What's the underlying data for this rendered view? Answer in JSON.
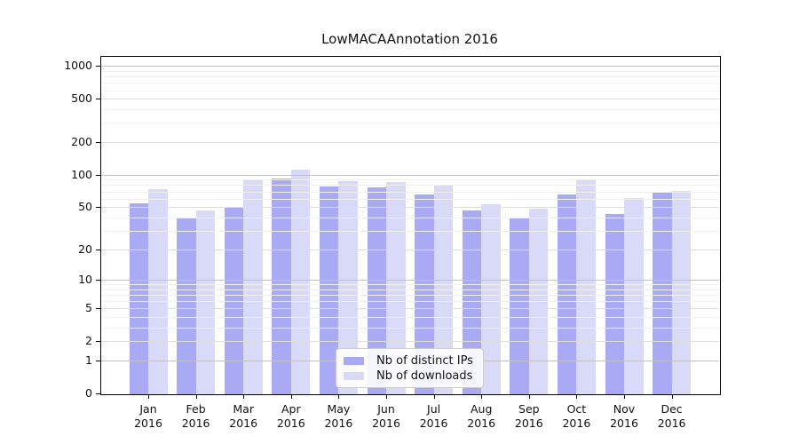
{
  "chart_data": {
    "type": "bar",
    "title": "LowMACAAnnotation 2016",
    "categories": [
      "Jan",
      "Feb",
      "Mar",
      "Apr",
      "May",
      "Jun",
      "Jul",
      "Aug",
      "Sep",
      "Oct",
      "Nov",
      "Dec"
    ],
    "category_year": "2016",
    "series": [
      {
        "name": "Nb of distinct IPs",
        "color": "#a9a9f4",
        "values": [
          54,
          40,
          50,
          93,
          78,
          76,
          65,
          46,
          40,
          66,
          43,
          69
        ]
      },
      {
        "name": "Nb of downloads",
        "color": "#d9d9f8",
        "values": [
          73,
          46,
          91,
          112,
          87,
          86,
          80,
          53,
          48,
          89,
          61,
          71
        ]
      }
    ],
    "y_ticks": [
      0,
      1,
      2,
      5,
      10,
      20,
      50,
      100,
      200,
      500,
      1000
    ],
    "y_minor_ticks": [
      3,
      4,
      6,
      7,
      8,
      9,
      30,
      40,
      60,
      70,
      80,
      90,
      300,
      400,
      600,
      700,
      800,
      900
    ],
    "y_scale": "log(1+x)",
    "ylim": [
      0,
      1100
    ],
    "grid": true,
    "legend_position": "bottom-center",
    "colors": {
      "grid_major_pow10": "#c2c2c2",
      "grid_major": "#dddddd",
      "grid_minor": "#efefef",
      "frame": "#000000",
      "text": "#111111",
      "legend_border": "#cccccc"
    }
  }
}
